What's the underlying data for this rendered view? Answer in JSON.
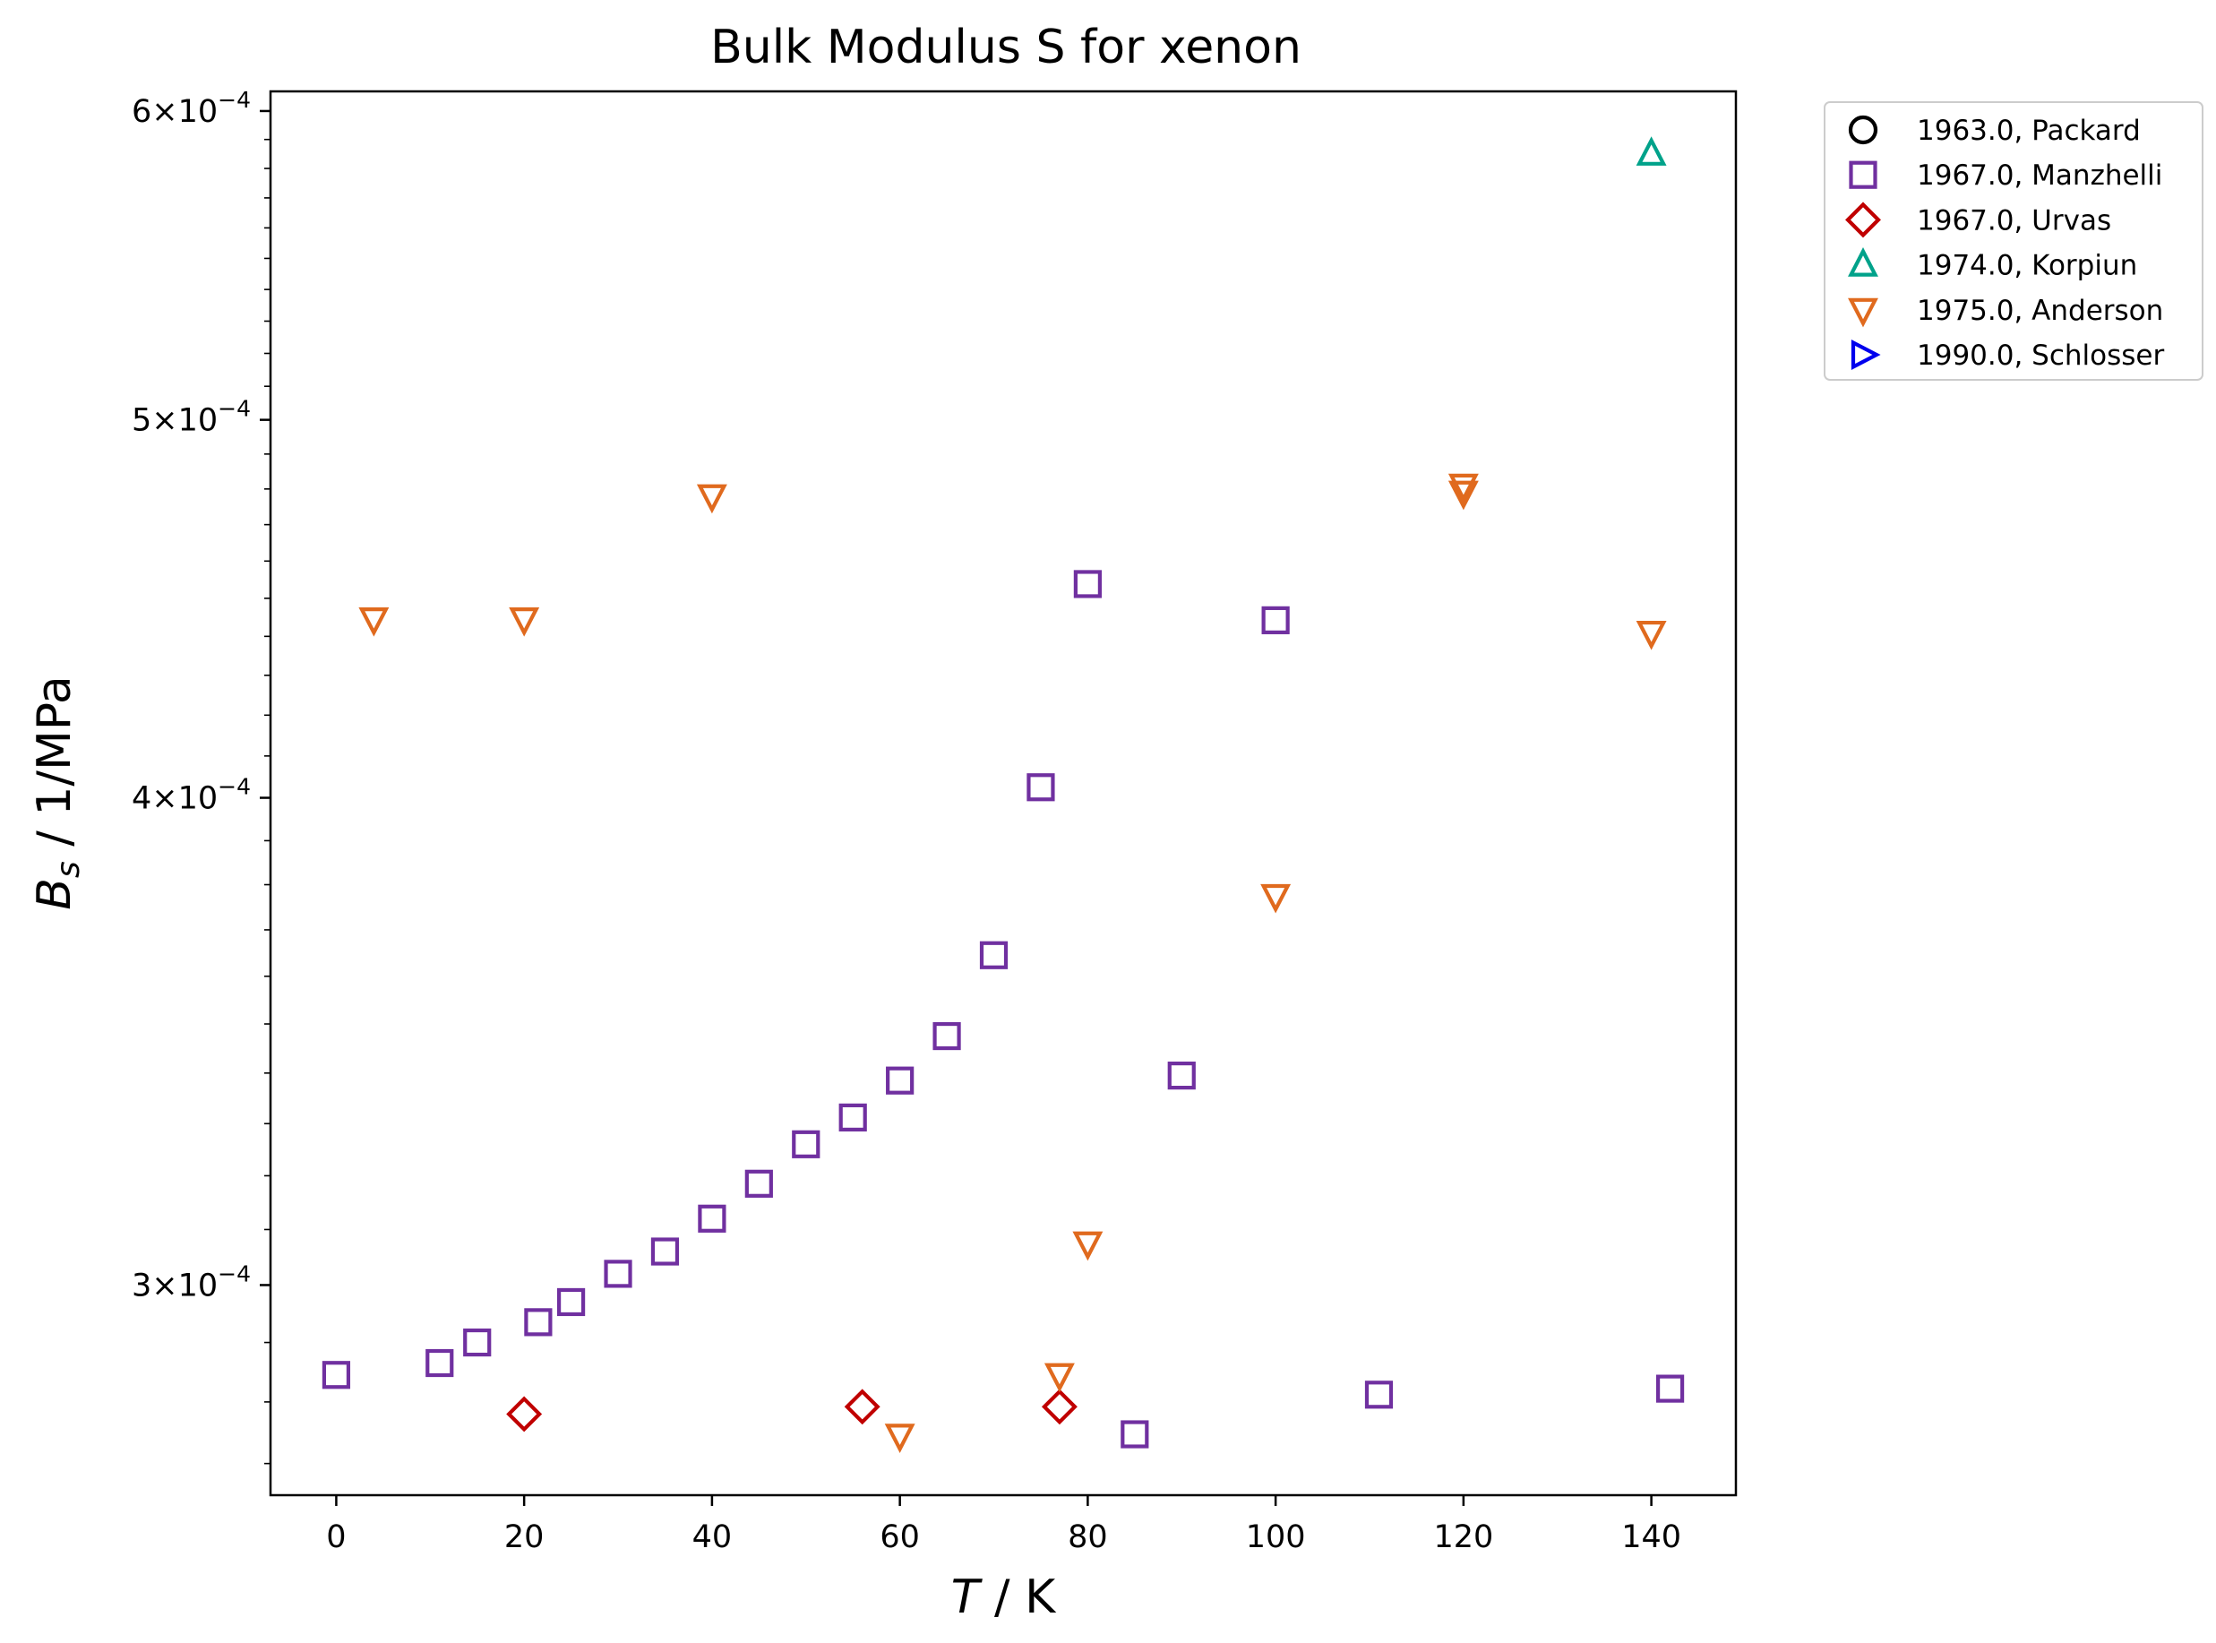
{
  "chart_data": {
    "type": "scatter",
    "title": "Bulk Modulus S for xenon",
    "xlabel_var": "T",
    "xlabel_unit": " / K",
    "ylabel_var": "B",
    "ylabel_sub": "s",
    "ylabel_unit": " / 1/MPa",
    "xlim": [
      -7,
      149
    ],
    "ylim": [
      0.000265,
      0.000607
    ],
    "yscale": "log",
    "grid": false,
    "legend_position": "outside-top-right",
    "x_ticks": [
      {
        "value": 0,
        "label": "0"
      },
      {
        "value": 20,
        "label": "20"
      },
      {
        "value": 40,
        "label": "40"
      },
      {
        "value": 60,
        "label": "60"
      },
      {
        "value": 80,
        "label": "80"
      },
      {
        "value": 100,
        "label": "100"
      },
      {
        "value": 120,
        "label": "120"
      },
      {
        "value": 140,
        "label": "140"
      }
    ],
    "y_ticks": [
      {
        "value": 0.0003,
        "mantissa": "3",
        "exponent": "−4"
      },
      {
        "value": 0.0004,
        "mantissa": "4",
        "exponent": "−4"
      },
      {
        "value": 0.0005,
        "mantissa": "5",
        "exponent": "−4"
      },
      {
        "value": 0.0006,
        "mantissa": "6",
        "exponent": "−4"
      }
    ],
    "series": [
      {
        "name": "1963.0, Packard",
        "marker": "circle",
        "color": "#000000",
        "points": []
      },
      {
        "name": "1967.0, Manzhelli",
        "marker": "square",
        "color": "#7030a0",
        "points": [
          [
            0,
            0.0002845
          ],
          [
            11,
            0.0002865
          ],
          [
            15,
            0.00029
          ],
          [
            21.5,
            0.0002935
          ],
          [
            25,
            0.000297
          ],
          [
            30,
            0.000302
          ],
          [
            35,
            0.000306
          ],
          [
            40,
            0.000312
          ],
          [
            45,
            0.0003185
          ],
          [
            50,
            0.000326
          ],
          [
            55,
            0.0003312
          ],
          [
            60,
            0.0003385
          ],
          [
            65,
            0.0003475
          ],
          [
            70,
            0.0003645
          ],
          [
            75,
            0.0004025
          ],
          [
            80,
            0.0004538
          ],
          [
            85,
            0.0002747
          ],
          [
            90,
            0.0003395
          ],
          [
            100,
            0.0004442
          ],
          [
            111,
            0.0002812
          ],
          [
            142,
            0.0002822
          ]
        ]
      },
      {
        "name": "1967.0, Urvas",
        "marker": "diamond",
        "color": "#c00000",
        "points": [
          [
            20,
            0.000278
          ],
          [
            56,
            0.0002792
          ],
          [
            77,
            0.0002792
          ]
        ]
      },
      {
        "name": "1974.0, Korpiun",
        "marker": "triangle-up",
        "color": "#00a28a",
        "points": [
          [
            140,
            0.000585
          ]
        ]
      },
      {
        "name": "1975.0, Anderson",
        "marker": "triangle-down",
        "color": "#e06a1e",
        "points": [
          [
            4,
            0.0004445
          ],
          [
            20,
            0.0004445
          ],
          [
            40,
            0.000478
          ],
          [
            60,
            0.0002745
          ],
          [
            77,
            0.0002845
          ],
          [
            80,
            0.0003075
          ],
          [
            100,
            0.0003775
          ],
          [
            120,
            0.000479
          ],
          [
            120,
            0.000481
          ],
          [
            140,
            0.000441
          ]
        ]
      },
      {
        "name": "1990.0, Schlosser",
        "marker": "triangle-right",
        "color": "#0000ee",
        "points": []
      }
    ]
  }
}
